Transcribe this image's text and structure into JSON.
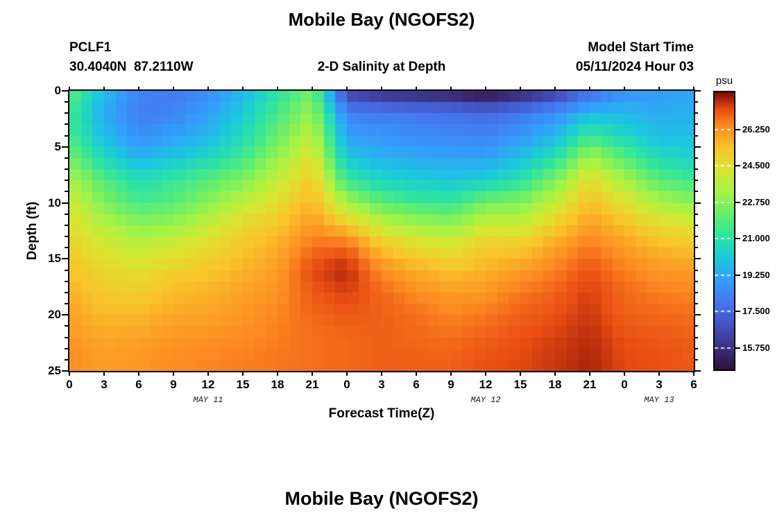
{
  "header": {
    "title": "Mobile Bay (NGOFS2)",
    "station_id": "PCLF1",
    "station_coords": "30.4040N  87.2110W",
    "subtitle": "2-D Salinity at Depth",
    "model_start_label": "Model Start Time",
    "model_start_value": "05/11/2024 Hour 03"
  },
  "footer": {
    "next_title": "Mobile Bay (NGOFS2)"
  },
  "chart_data": {
    "type": "heatmap",
    "title": "2-D Salinity at Depth",
    "x_axis": {
      "title": "Forecast Time(Z)",
      "tick_hours": [
        0,
        3,
        6,
        9,
        12,
        15,
        18,
        21,
        24,
        27,
        30,
        33,
        36,
        39,
        42,
        45,
        48,
        51,
        54
      ],
      "tick_labels": [
        "0",
        "3",
        "6",
        "9",
        "12",
        "15",
        "18",
        "21",
        "0",
        "3",
        "6",
        "9",
        "12",
        "15",
        "18",
        "21",
        "0",
        "3",
        "6"
      ],
      "date_labels": [
        {
          "label": "MAY 11",
          "hour": 12
        },
        {
          "label": "MAY 12",
          "hour": 36
        },
        {
          "label": "MAY 13",
          "hour": 51
        }
      ],
      "range_hours": [
        0,
        54
      ]
    },
    "y_axis": {
      "title": "Depth (ft)",
      "tick_values": [
        0,
        5,
        10,
        15,
        20,
        25
      ],
      "minor_step_ft": 1,
      "range_ft": [
        0,
        25
      ]
    },
    "colorbar": {
      "unit": "psu",
      "tick_labels": [
        "26.250",
        "24.500",
        "22.750",
        "21.000",
        "19.250",
        "17.500",
        "15.750"
      ],
      "vmin": 14.7,
      "vmax": 28.05,
      "colormap": "turbo",
      "stops": [
        [
          0.0,
          "#30123b"
        ],
        [
          0.08,
          "#3c3080"
        ],
        [
          0.16,
          "#4454c3"
        ],
        [
          0.24,
          "#4676ee"
        ],
        [
          0.32,
          "#349dfc"
        ],
        [
          0.4,
          "#1bc9dc"
        ],
        [
          0.48,
          "#2de3a3"
        ],
        [
          0.56,
          "#67ee6c"
        ],
        [
          0.64,
          "#a4f346"
        ],
        [
          0.72,
          "#d8e631"
        ],
        [
          0.8,
          "#f9c42a"
        ],
        [
          0.88,
          "#fd8a22"
        ],
        [
          0.94,
          "#e94d13"
        ],
        [
          1.0,
          "#7d0804"
        ]
      ]
    },
    "grid_hours": [
      0,
      3,
      6,
      9,
      12,
      15,
      18,
      21,
      24,
      27,
      30,
      33,
      36,
      39,
      42,
      45,
      48,
      51,
      54
    ],
    "grid_depths_ft": [
      0,
      2,
      4,
      6,
      8,
      10,
      12,
      14,
      16,
      18,
      20,
      22,
      24
    ],
    "salinity_psu": [
      [
        22.0,
        19.8,
        18.3,
        18.0,
        18.5,
        19.6,
        21.0,
        22.4,
        16.2,
        15.6,
        15.3,
        15.1,
        14.5,
        15.2,
        16.0,
        17.5,
        18.6,
        19.0,
        19.2
      ],
      [
        21.5,
        19.3,
        18.1,
        18.3,
        19.0,
        20.1,
        21.6,
        23.0,
        18.2,
        18.0,
        17.9,
        17.7,
        17.5,
        17.9,
        18.6,
        19.6,
        19.6,
        19.3,
        19.4
      ],
      [
        21.6,
        19.7,
        18.6,
        19.0,
        19.6,
        20.7,
        22.2,
        23.8,
        19.0,
        18.8,
        18.5,
        18.4,
        18.3,
        18.8,
        19.6,
        21.4,
        20.5,
        19.8,
        19.8
      ],
      [
        22.4,
        20.6,
        19.5,
        20.0,
        20.6,
        21.5,
        23.0,
        24.6,
        20.0,
        19.5,
        19.3,
        19.2,
        19.1,
        19.8,
        21.0,
        23.3,
        21.9,
        20.7,
        20.4
      ],
      [
        23.4,
        21.8,
        20.8,
        21.3,
        21.9,
        22.6,
        23.9,
        25.2,
        21.4,
        20.5,
        20.2,
        20.0,
        20.3,
        21.0,
        22.5,
        24.7,
        23.3,
        21.9,
        21.4
      ],
      [
        24.1,
        22.6,
        21.6,
        21.9,
        22.8,
        23.8,
        24.7,
        25.7,
        23.3,
        22.0,
        21.5,
        21.3,
        22.4,
        22.6,
        24.0,
        25.5,
        24.5,
        23.4,
        22.9
      ],
      [
        24.6,
        23.6,
        22.8,
        23.1,
        23.9,
        24.8,
        25.3,
        26.2,
        25.4,
        23.9,
        23.3,
        23.0,
        24.1,
        24.0,
        25.1,
        26.1,
        25.5,
        24.7,
        24.4
      ],
      [
        25.0,
        24.3,
        23.8,
        24.2,
        24.7,
        25.3,
        25.8,
        26.8,
        27.0,
        25.4,
        24.8,
        24.4,
        25.2,
        25.2,
        26.0,
        26.7,
        26.1,
        25.6,
        25.4
      ],
      [
        25.4,
        24.8,
        24.6,
        25.0,
        25.3,
        25.7,
        26.1,
        27.3,
        27.7,
        26.4,
        25.8,
        25.4,
        25.7,
        26.1,
        26.6,
        27.2,
        26.6,
        26.2,
        26.1
      ],
      [
        25.7,
        25.2,
        25.1,
        25.5,
        25.7,
        26.0,
        26.3,
        27.1,
        27.4,
        26.9,
        26.4,
        26.1,
        26.2,
        26.7,
        27.0,
        27.4,
        26.9,
        26.6,
        26.5
      ],
      [
        26.0,
        25.6,
        25.6,
        25.9,
        26.0,
        26.2,
        26.5,
        26.9,
        27.1,
        27.0,
        26.8,
        26.5,
        26.7,
        27.0,
        27.2,
        27.5,
        27.0,
        26.9,
        26.8
      ],
      [
        26.2,
        25.9,
        26.0,
        26.2,
        26.3,
        26.4,
        26.6,
        26.8,
        26.9,
        27.0,
        26.9,
        26.8,
        27.0,
        27.2,
        27.4,
        27.6,
        27.2,
        27.1,
        27.0
      ],
      [
        26.4,
        26.1,
        26.2,
        26.4,
        26.5,
        26.6,
        26.7,
        26.8,
        26.9,
        27.0,
        27.0,
        27.0,
        27.2,
        27.3,
        27.5,
        27.7,
        27.3,
        27.2,
        27.1
      ]
    ]
  }
}
